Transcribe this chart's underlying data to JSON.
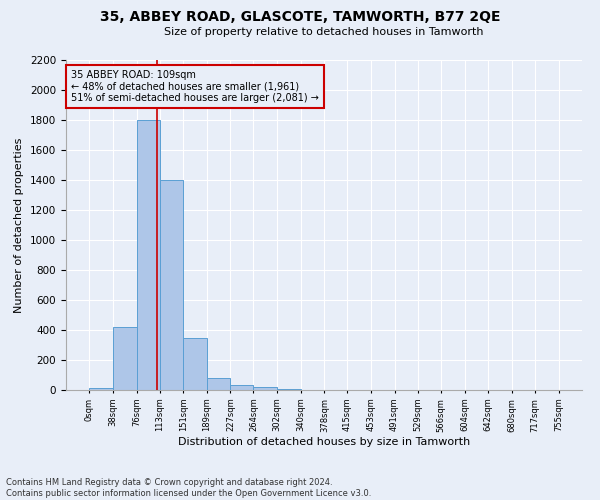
{
  "title": "35, ABBEY ROAD, GLASCOTE, TAMWORTH, B77 2QE",
  "subtitle": "Size of property relative to detached houses in Tamworth",
  "xlabel": "Distribution of detached houses by size in Tamworth",
  "ylabel": "Number of detached properties",
  "footer_line1": "Contains HM Land Registry data © Crown copyright and database right 2024.",
  "footer_line2": "Contains public sector information licensed under the Open Government Licence v3.0.",
  "property_label": "35 ABBEY ROAD: 109sqm",
  "annotation_line1": "← 48% of detached houses are smaller (1,961)",
  "annotation_line2": "51% of semi-detached houses are larger (2,081) →",
  "bin_edges": [
    0,
    38,
    76,
    113,
    151,
    189,
    227,
    264,
    302,
    340,
    378,
    415,
    453,
    491,
    529,
    566,
    604,
    642,
    680,
    717,
    755
  ],
  "bin_counts": [
    15,
    420,
    1800,
    1400,
    350,
    80,
    35,
    20,
    5,
    0,
    0,
    0,
    0,
    0,
    0,
    0,
    0,
    0,
    0,
    0
  ],
  "bar_color": "#aec6e8",
  "bar_edge_color": "#5a9fd4",
  "vline_color": "#cc0000",
  "vline_x": 109,
  "annotation_box_color": "#cc0000",
  "background_color": "#e8eef8",
  "grid_color": "#ffffff",
  "ylim": [
    0,
    2200
  ],
  "yticks": [
    0,
    200,
    400,
    600,
    800,
    1000,
    1200,
    1400,
    1600,
    1800,
    2000,
    2200
  ],
  "title_fontsize": 10,
  "subtitle_fontsize": 8,
  "ylabel_fontsize": 8,
  "xlabel_fontsize": 8,
  "ytick_fontsize": 7.5,
  "xtick_fontsize": 6,
  "footer_fontsize": 6,
  "annotation_fontsize": 7
}
